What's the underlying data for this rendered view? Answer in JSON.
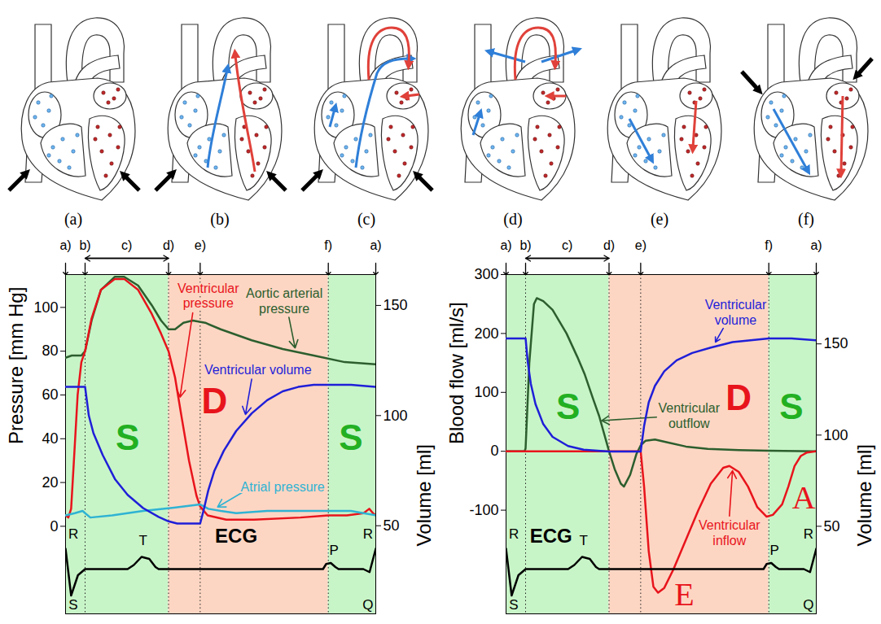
{
  "diagram": {
    "panels": [
      "(a)",
      "(b)",
      "(c)",
      "(d)",
      "(e)",
      "(f)"
    ]
  },
  "chart_data": [
    {
      "type": "line",
      "tick_labels": "y",
      "xlim": [
        0,
        100
      ],
      "ylabel": "Pressure [mm Hg]",
      "ylim": [
        -40,
        115
      ],
      "yticks": [
        0,
        20,
        40,
        60,
        80,
        100
      ],
      "y2label": "Volume [ml]",
      "y2lim": [
        10,
        164
      ],
      "y2ticks": [
        50,
        100,
        150
      ],
      "phases": [
        {
          "label": "a)",
          "x": 0
        },
        {
          "label": "b)",
          "x": 6.3
        },
        {
          "label": "d)",
          "x": 33.2
        },
        {
          "label": "e)",
          "x": 43.4
        },
        {
          "label": "f)",
          "x": 84.7
        },
        {
          "label": "a)",
          "x": 100
        }
      ],
      "interval": {
        "label": "c)",
        "from": 6.3,
        "to": 33.2
      },
      "shading": [
        {
          "from": 0,
          "to": 33.2,
          "color": "#c8f5c8"
        },
        {
          "from": 33.2,
          "to": 84.7,
          "color": "#fdd6c3"
        },
        {
          "from": 84.7,
          "to": 100,
          "color": "#c8f5c8"
        }
      ],
      "phase_letters": [
        {
          "text": "S",
          "x": 20,
          "y": 40,
          "color": "#22b022"
        },
        {
          "text": "D",
          "x": 48,
          "y": 57,
          "color": "#e8141c"
        },
        {
          "text": "S",
          "x": 92,
          "y": 40,
          "color": "#22b022"
        }
      ],
      "series": [
        {
          "name": "Aortic arterial\npressure",
          "color": "#2c5e2e",
          "x": [
            0,
            2,
            5.1,
            6.3,
            8.4,
            11.4,
            15.9,
            18.9,
            23.4,
            27.8,
            30.8,
            33.2,
            35.3,
            38,
            41,
            45,
            50,
            60,
            70,
            80,
            90,
            100
          ],
          "values": [
            77,
            78,
            78,
            80,
            94,
            108,
            114,
            114,
            110,
            101,
            94,
            90,
            90,
            93,
            94,
            93,
            90,
            85,
            81,
            78,
            75,
            74
          ],
          "label_x": 70.5,
          "label_y": 103,
          "arrow": [
            72,
            95.5,
            74,
            81.5
          ]
        },
        {
          "name": "Ventricular\npressure",
          "color": "#e8141c",
          "x": [
            0,
            0.9,
            1.8,
            2.7,
            3.9,
            5.1,
            6.3,
            8.4,
            11.4,
            15.9,
            18.9,
            23.4,
            27.8,
            30.8,
            33.2,
            35.3,
            37.4,
            39.8,
            42.2,
            43.4,
            45.8,
            51.8,
            60.8,
            75.7,
            84.7,
            90.7,
            96.1,
            97.9,
            99.1,
            100
          ],
          "values": [
            5,
            4,
            8,
            30,
            60,
            75,
            80,
            95,
            108,
            113,
            113,
            108,
            97,
            88,
            80,
            68,
            50,
            30,
            14,
            9,
            5,
            3,
            3,
            4,
            5,
            5,
            6,
            8,
            6,
            5
          ],
          "label_x": 46,
          "label_y": 105.5,
          "arrow": [
            41,
            97.5,
            36.9,
            59
          ]
        },
        {
          "name": "Ventricular volume",
          "color": "#1f1fd8",
          "axis": "y2",
          "x": [
            0,
            5.5,
            6.3,
            7.5,
            9,
            12,
            16,
            20,
            25,
            30,
            33.2,
            36,
            43.4,
            44.5,
            46,
            48,
            51,
            55,
            60,
            65,
            70,
            75,
            80,
            92,
            100
          ],
          "values": [
            113,
            113,
            113,
            100,
            92,
            82,
            71,
            64,
            58,
            54,
            52,
            51,
            51,
            57,
            66,
            75,
            84,
            93,
            101,
            107,
            111,
            113,
            114,
            114,
            113
          ],
          "label_x": 62,
          "label_y": 120.8,
          "arrow": [
            60,
            116.5,
            58,
            100.5
          ]
        },
        {
          "name": "Atrial pressure",
          "color": "#2fb3d3",
          "x": [
            0,
            3,
            5.5,
            6.3,
            8,
            15,
            25,
            35,
            43.4,
            46,
            50,
            55,
            65,
            75,
            85,
            92,
            96,
            100
          ],
          "values": [
            5,
            6,
            7,
            6,
            4,
            5,
            7,
            8.5,
            10,
            8,
            7,
            6,
            7,
            7,
            7,
            7,
            6,
            5
          ],
          "label_x": 70,
          "label_y": 18,
          "arrow": [
            57,
            15.5,
            49,
            8.8
          ]
        }
      ],
      "ecg": {
        "label": "ECG",
        "label_x": 55,
        "label_y": 1.6,
        "ylim": [
          -2.2,
          2.2
        ],
        "x": [
          0,
          1.8,
          4,
          6.3,
          20,
          22,
          24.5,
          27,
          29,
          30,
          83,
          84,
          85.5,
          87,
          88,
          96,
          98,
          100
        ],
        "values": [
          1,
          -1.3,
          -0.3,
          0,
          0,
          0.2,
          0.6,
          0.5,
          0.1,
          0,
          0,
          0.25,
          0.3,
          0.1,
          0,
          0,
          -0.15,
          1
        ],
        "points": [
          {
            "text": "R",
            "x": 2.5,
            "y": 1.7
          },
          {
            "text": "S",
            "x": 2.5,
            "y": -1.75
          },
          {
            "text": "T",
            "x": 25,
            "y": 1.4
          },
          {
            "text": "P",
            "x": 86.5,
            "y": 0.9
          },
          {
            "text": "R",
            "x": 97.5,
            "y": 1.7
          },
          {
            "text": "Q",
            "x": 97.5,
            "y": -1.75
          }
        ]
      }
    },
    {
      "type": "line",
      "tick_labels": "y",
      "xlim": [
        0,
        100
      ],
      "ylabel": "Blood flow [ml/s]",
      "ylim": [
        -276,
        300
      ],
      "yticks": [
        -100,
        0,
        100,
        200,
        300
      ],
      "y2label": "Volume [ml]",
      "y2lim": [
        2,
        188
      ],
      "y2ticks": [
        50,
        100,
        150
      ],
      "phases": [
        {
          "label": "a)",
          "x": 0
        },
        {
          "label": "b)",
          "x": 6.3
        },
        {
          "label": "d)",
          "x": 33.2
        },
        {
          "label": "e)",
          "x": 43.4
        },
        {
          "label": "f)",
          "x": 84.7
        },
        {
          "label": "a)",
          "x": 100
        }
      ],
      "interval": {
        "label": "c)",
        "from": 6.3,
        "to": 33.2
      },
      "shading": [
        {
          "from": 0,
          "to": 33.2,
          "color": "#c8f5c8"
        },
        {
          "from": 33.2,
          "to": 84.7,
          "color": "#fdd6c3"
        },
        {
          "from": 84.7,
          "to": 100,
          "color": "#c8f5c8"
        }
      ],
      "phase_letters": [
        {
          "text": "S",
          "x": 20,
          "y": 74,
          "color": "#22b022"
        },
        {
          "text": "D",
          "x": 75,
          "y": 90,
          "color": "#e8141c"
        },
        {
          "text": "S",
          "x": 92,
          "y": 74,
          "color": "#22b022"
        }
      ],
      "wave_labels": [
        {
          "text": "E",
          "x": 57.5,
          "y": -244,
          "color": "#e8141c"
        },
        {
          "text": "A",
          "x": 96,
          "y": -80,
          "color": "#e8141c"
        }
      ],
      "series": [
        {
          "name": "Ventricular\noutflow",
          "color": "#2c5e2e",
          "x": [
            0,
            6,
            6.3,
            7.5,
            9,
            9.9,
            12,
            15,
            19.5,
            23,
            25.4,
            28,
            30,
            33.2,
            35,
            37,
            38,
            40,
            42,
            43.4,
            45,
            48,
            52,
            58,
            65,
            75,
            84.7,
            100
          ],
          "values": [
            0,
            0,
            5,
            150,
            250,
            260,
            255,
            240,
            200,
            160,
            130,
            90,
            60,
            0,
            -30,
            -55,
            -60,
            -40,
            -5,
            10,
            18,
            20,
            15,
            8,
            4,
            2,
            1,
            0
          ],
          "label_x": 59,
          "label_y": 61,
          "arrow": [
            48.5,
            58,
            30.8,
            52
          ]
        },
        {
          "name": "Ventricular\ninflow",
          "color": "#e8141c",
          "x": [
            0,
            43.4,
            44.5,
            46,
            47.5,
            49,
            51,
            54,
            58,
            62,
            66,
            70,
            72,
            75,
            78,
            81,
            84,
            86,
            89,
            91,
            93,
            95,
            97,
            100
          ],
          "values": [
            0,
            0,
            -60,
            -170,
            -230,
            -240,
            -232,
            -200,
            -150,
            -100,
            -55,
            -28,
            -25,
            -35,
            -60,
            -95,
            -111,
            -108,
            -90,
            -60,
            -25,
            -8,
            -2,
            0
          ],
          "label_x": 72,
          "label_y": -138,
          "arrow": [
            72,
            -110,
            73,
            -33
          ]
        },
        {
          "name": "Ventricular\nvolume",
          "color": "#1f1fd8",
          "axis": "y2",
          "x": [
            0,
            6.3,
            7,
            8,
            9.5,
            12,
            15,
            20,
            25,
            33.2,
            43.4,
            44.5,
            46,
            48,
            51,
            55,
            60,
            66,
            73,
            84.7,
            92,
            100
          ],
          "values": [
            153,
            153,
            140,
            128,
            117,
            106,
            99,
            94,
            92,
            91,
            91,
            105,
            118,
            127,
            135,
            141,
            145,
            148,
            151,
            153,
            153,
            152
          ],
          "label_x": 74,
          "label_y": 167.5,
          "arrow": [
            70,
            158.5,
            67.5,
            151
          ]
        }
      ],
      "ecg": {
        "label": "ECG",
        "label_x": 14.5,
        "label_y": 1.6,
        "ylim": [
          -2.2,
          2.2
        ],
        "x": [
          0,
          1.8,
          4,
          6.3,
          20,
          22,
          24.5,
          27,
          29,
          30,
          83,
          84,
          85.5,
          87,
          88,
          96,
          98,
          100
        ],
        "values": [
          1,
          -1.3,
          -0.3,
          0,
          0,
          0.2,
          0.6,
          0.5,
          0.1,
          0,
          0,
          0.25,
          0.3,
          0.1,
          0,
          0,
          -0.15,
          1
        ],
        "points": [
          {
            "text": "R",
            "x": 2.5,
            "y": 1.7
          },
          {
            "text": "S",
            "x": 2.5,
            "y": -1.75
          },
          {
            "text": "T",
            "x": 25,
            "y": 1.4
          },
          {
            "text": "P",
            "x": 86.5,
            "y": 0.9
          },
          {
            "text": "R",
            "x": 97.5,
            "y": 1.7
          },
          {
            "text": "Q",
            "x": 97.5,
            "y": -1.75
          }
        ]
      }
    }
  ]
}
